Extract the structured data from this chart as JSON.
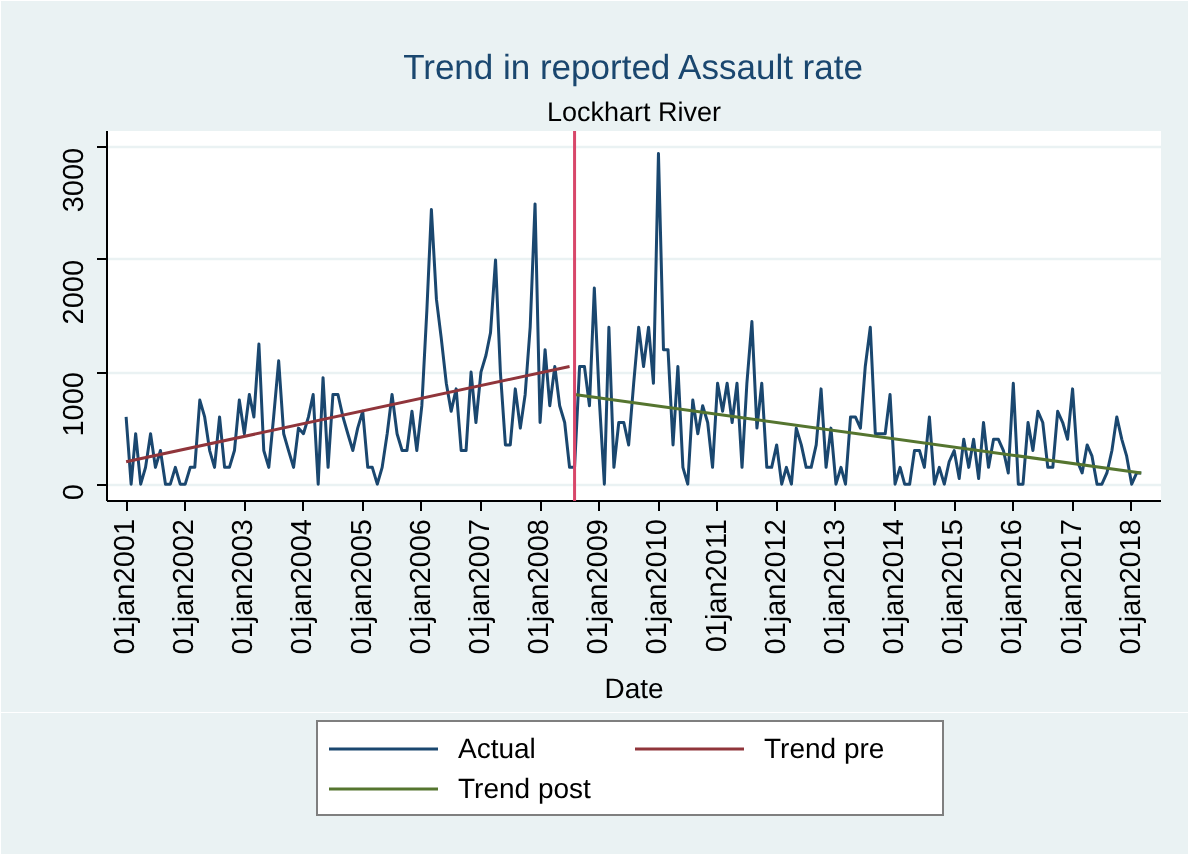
{
  "chart_data": {
    "type": "line",
    "title": "Trend in reported Assault rate",
    "subtitle": "Lockhart River",
    "xlabel": "Date",
    "xlim": [
      "2000-09-05",
      "2018-07-01"
    ],
    "ylim": [
      -150,
      3150
    ],
    "xticks": [
      {
        "value": "2001-01-01",
        "label": "01jan2001"
      },
      {
        "value": "2002-01-01",
        "label": "01jan2002"
      },
      {
        "value": "2003-01-01",
        "label": "01jan2003"
      },
      {
        "value": "2004-01-01",
        "label": "01jan2004"
      },
      {
        "value": "2005-01-01",
        "label": "01jan2005"
      },
      {
        "value": "2006-01-01",
        "label": "01jan2006"
      },
      {
        "value": "2007-01-01",
        "label": "01jan2007"
      },
      {
        "value": "2008-01-01",
        "label": "01jan2008"
      },
      {
        "value": "2009-01-01",
        "label": "01jan2009"
      },
      {
        "value": "2010-01-01",
        "label": "01jan2010"
      },
      {
        "value": "2011-01-01",
        "label": "01jan2011"
      },
      {
        "value": "2012-01-01",
        "label": "01jan2012"
      },
      {
        "value": "2013-01-01",
        "label": "01jan2013"
      },
      {
        "value": "2014-01-01",
        "label": "01jan2014"
      },
      {
        "value": "2015-01-01",
        "label": "01jan2015"
      },
      {
        "value": "2016-01-01",
        "label": "01jan2016"
      },
      {
        "value": "2017-01-01",
        "label": "01jan2017"
      },
      {
        "value": "2018-01-01",
        "label": "01jan2018"
      }
    ],
    "yticks": [
      0,
      1000,
      2000,
      3000
    ],
    "grid": "y",
    "legend": "bottom",
    "line_style": "solid",
    "ref_lines": [
      {
        "axis": "x",
        "value": "2008-08-01",
        "color": "#d8476a"
      }
    ],
    "series": [
      {
        "name": "Actual",
        "color": "#1a476f",
        "x": [
          "2001-01",
          "2001-02",
          "2001-03",
          "2001-04",
          "2001-05",
          "2001-06",
          "2001-07",
          "2001-08",
          "2001-09",
          "2001-10",
          "2001-11",
          "2001-12",
          "2002-01",
          "2002-02",
          "2002-03",
          "2002-04",
          "2002-05",
          "2002-06",
          "2002-07",
          "2002-08",
          "2002-09",
          "2002-10",
          "2002-11",
          "2002-12",
          "2003-01",
          "2003-02",
          "2003-03",
          "2003-04",
          "2003-05",
          "2003-06",
          "2003-07",
          "2003-08",
          "2003-09",
          "2003-10",
          "2003-11",
          "2003-12",
          "2004-01",
          "2004-02",
          "2004-03",
          "2004-04",
          "2004-05",
          "2004-06",
          "2004-07",
          "2004-08",
          "2004-09",
          "2004-10",
          "2004-11",
          "2004-12",
          "2005-01",
          "2005-02",
          "2005-03",
          "2005-04",
          "2005-05",
          "2005-06",
          "2005-07",
          "2005-08",
          "2005-09",
          "2005-10",
          "2005-11",
          "2005-12",
          "2006-01",
          "2006-02",
          "2006-03",
          "2006-04",
          "2006-05",
          "2006-06",
          "2006-07",
          "2006-08",
          "2006-09",
          "2006-10",
          "2006-11",
          "2006-12",
          "2007-01",
          "2007-02",
          "2007-03",
          "2007-04",
          "2007-05",
          "2007-06",
          "2007-07",
          "2007-08",
          "2007-09",
          "2007-10",
          "2007-11",
          "2007-12",
          "2008-01",
          "2008-02",
          "2008-03",
          "2008-04",
          "2008-05",
          "2008-06",
          "2008-07",
          "2008-08",
          "2008-09",
          "2008-10",
          "2008-11",
          "2008-12",
          "2009-01",
          "2009-02",
          "2009-03",
          "2009-04",
          "2009-05",
          "2009-06",
          "2009-07",
          "2009-08",
          "2009-09",
          "2009-10",
          "2009-11",
          "2009-12",
          "2010-01",
          "2010-02",
          "2010-03",
          "2010-04",
          "2010-05",
          "2010-06",
          "2010-07",
          "2010-08",
          "2010-09",
          "2010-10",
          "2010-11",
          "2010-12",
          "2011-01",
          "2011-02",
          "2011-03",
          "2011-04",
          "2011-05",
          "2011-06",
          "2011-07",
          "2011-08",
          "2011-09",
          "2011-10",
          "2011-11",
          "2011-12",
          "2012-01",
          "2012-02",
          "2012-03",
          "2012-04",
          "2012-05",
          "2012-06",
          "2012-07",
          "2012-08",
          "2012-09",
          "2012-10",
          "2012-11",
          "2012-12",
          "2013-01",
          "2013-02",
          "2013-03",
          "2013-04",
          "2013-05",
          "2013-06",
          "2013-07",
          "2013-08",
          "2013-09",
          "2013-10",
          "2013-11",
          "2013-12",
          "2014-01",
          "2014-02",
          "2014-03",
          "2014-04",
          "2014-05",
          "2014-06",
          "2014-07",
          "2014-08",
          "2014-09",
          "2014-10",
          "2014-11",
          "2014-12",
          "2015-01",
          "2015-02",
          "2015-03",
          "2015-04",
          "2015-05",
          "2015-06",
          "2015-07",
          "2015-08",
          "2015-09",
          "2015-10",
          "2015-11",
          "2015-12",
          "2016-01",
          "2016-02",
          "2016-03",
          "2016-04",
          "2016-05",
          "2016-06",
          "2016-07",
          "2016-08",
          "2016-09",
          "2016-10",
          "2016-11",
          "2016-12",
          "2017-01",
          "2017-02",
          "2017-03",
          "2017-04",
          "2017-05",
          "2017-06",
          "2017-07",
          "2017-08",
          "2017-09",
          "2017-10",
          "2017-11",
          "2017-12",
          "2018-01",
          "2018-02",
          "2018-03"
        ],
        "values": [
          600,
          0,
          450,
          0,
          150,
          450,
          150,
          300,
          0,
          0,
          150,
          0,
          0,
          150,
          150,
          750,
          600,
          300,
          150,
          600,
          150,
          150,
          300,
          750,
          450,
          800,
          600,
          1250,
          300,
          150,
          600,
          1100,
          450,
          300,
          150,
          500,
          450,
          600,
          800,
          0,
          950,
          150,
          800,
          800,
          600,
          450,
          300,
          500,
          650,
          150,
          150,
          0,
          150,
          450,
          800,
          450,
          300,
          300,
          650,
          300,
          700,
          1550,
          2450,
          1650,
          1300,
          900,
          650,
          850,
          300,
          300,
          1000,
          550,
          1000,
          1150,
          1350,
          2000,
          1000,
          350,
          350,
          850,
          500,
          800,
          1400,
          2500,
          550,
          1200,
          700,
          1050,
          700,
          550,
          150,
          150,
          1050,
          1050,
          700,
          1750,
          750,
          0,
          1400,
          150,
          550,
          550,
          350,
          900,
          1400,
          1050,
          1400,
          900,
          2950,
          1200,
          1200,
          350,
          1050,
          150,
          0,
          750,
          450,
          700,
          550,
          150,
          900,
          650,
          900,
          550,
          900,
          150,
          900,
          1450,
          500,
          900,
          150,
          150,
          350,
          0,
          150,
          0,
          500,
          350,
          150,
          150,
          350,
          850,
          150,
          500,
          0,
          150,
          0,
          600,
          600,
          500,
          1050,
          1400,
          450,
          450,
          450,
          800,
          0,
          150,
          0,
          0,
          300,
          300,
          150,
          600,
          0,
          150,
          0,
          200,
          300,
          50,
          400,
          150,
          400,
          50,
          550,
          150,
          400,
          400,
          300,
          100,
          900,
          0,
          0,
          550,
          300,
          650,
          550,
          150,
          150,
          650,
          550,
          400,
          850,
          200,
          100,
          350,
          250,
          0,
          0,
          100,
          300,
          600,
          400,
          250,
          0,
          100,
          100
        ]
      },
      {
        "name": "Trend pre",
        "color": "#90353b",
        "x": [
          "2001-01",
          "2008-07"
        ],
        "values": [
          200,
          1050
        ]
      },
      {
        "name": "Trend post",
        "color": "#55752f",
        "x": [
          "2008-08",
          "2018-03"
        ],
        "values": [
          800,
          100
        ]
      }
    ]
  }
}
